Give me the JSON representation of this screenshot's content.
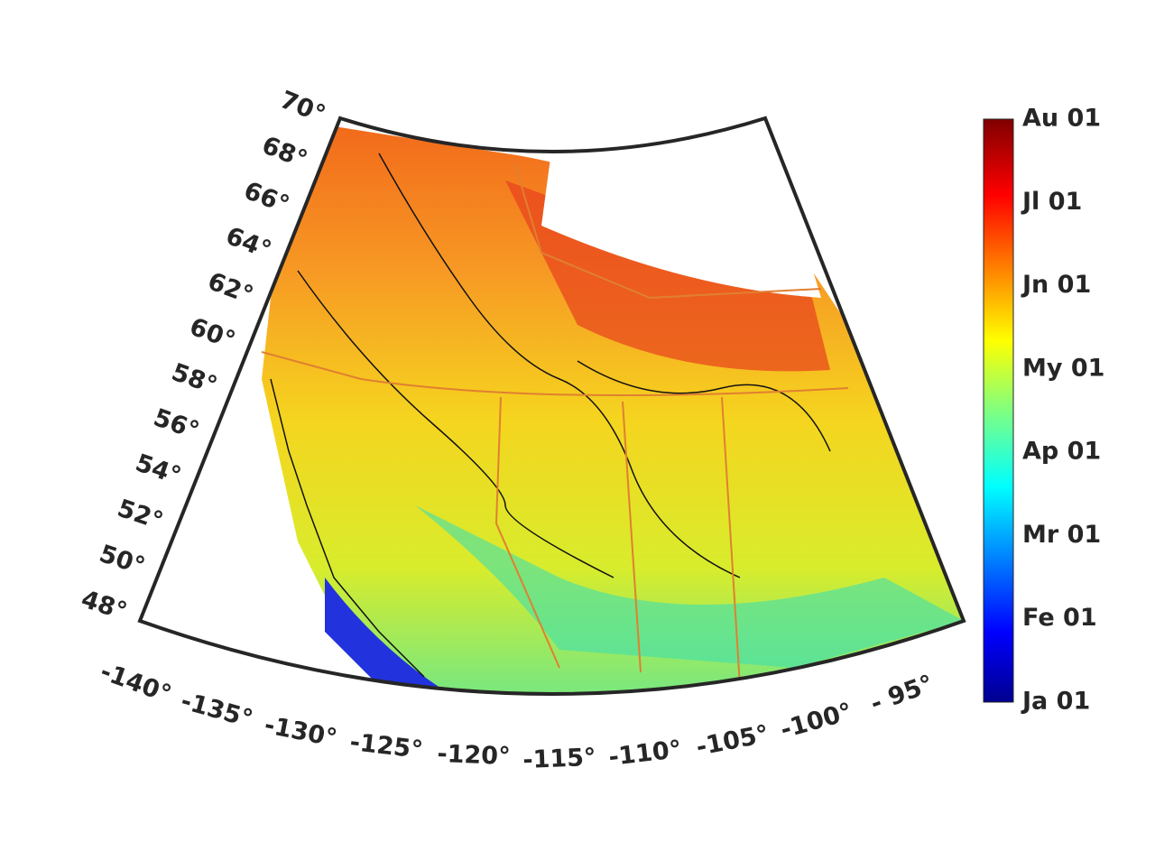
{
  "map": {
    "lat_labels": [
      "70°",
      "68°",
      "66°",
      "64°",
      "62°",
      "60°",
      "58°",
      "56°",
      "54°",
      "52°",
      "50°",
      "48°"
    ],
    "lon_labels": [
      "-140°",
      "-135°",
      "-130°",
      "-125°",
      "-120°",
      "-115°",
      "-110°",
      "-105°",
      "-100°",
      "- 95°"
    ],
    "colorbar": {
      "labels": [
        "Au 01",
        "Jl 01",
        "Jn 01",
        "My 01",
        "Ap 01",
        "Mr 01",
        "Fe 01",
        "Ja 01"
      ]
    }
  }
}
